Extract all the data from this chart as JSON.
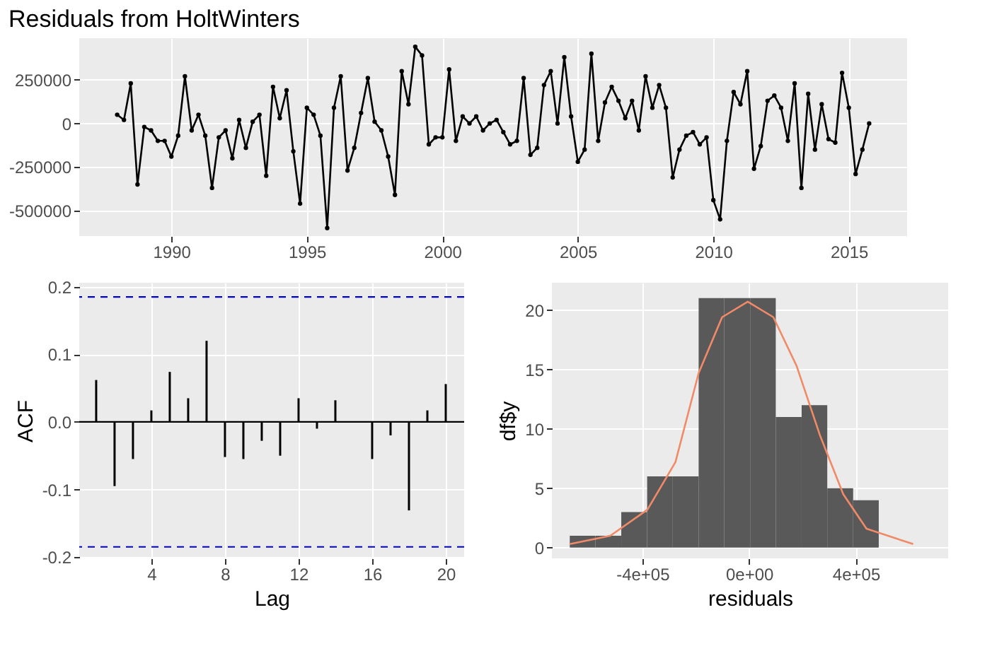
{
  "chart_data": [
    {
      "type": "line",
      "title": "Residuals from HoltWinters",
      "color": "#000000",
      "marker": "circle",
      "line_style": "solid",
      "grid": true,
      "x": [
        1988.0,
        1988.25,
        1988.5,
        1988.75,
        1989.0,
        1989.25,
        1989.5,
        1989.75,
        1990.0,
        1990.25,
        1990.5,
        1990.75,
        1991.0,
        1991.25,
        1991.5,
        1991.75,
        1992.0,
        1992.25,
        1992.5,
        1992.75,
        1993.0,
        1993.25,
        1993.5,
        1993.75,
        1994.0,
        1994.25,
        1994.5,
        1994.75,
        1995.0,
        1995.25,
        1995.5,
        1995.75,
        1996.0,
        1996.25,
        1996.5,
        1996.75,
        1997.0,
        1997.25,
        1997.5,
        1997.75,
        1998.0,
        1998.25,
        1998.5,
        1998.75,
        1999.0,
        1999.25,
        1999.5,
        1999.75,
        2000.0,
        2000.25,
        2000.5,
        2000.75,
        2001.0,
        2001.25,
        2001.5,
        2001.75,
        2002.0,
        2002.25,
        2002.5,
        2002.75,
        2003.0,
        2003.25,
        2003.5,
        2003.75,
        2004.0,
        2004.25,
        2004.5,
        2004.75,
        2005.0,
        2005.25,
        2005.5,
        2005.75,
        2006.0,
        2006.25,
        2006.5,
        2006.75,
        2007.0,
        2007.25,
        2007.5,
        2007.75,
        2008.0,
        2008.25,
        2008.5,
        2008.75,
        2009.0,
        2009.25,
        2009.5,
        2009.75,
        2010.0,
        2010.25,
        2010.5,
        2010.75,
        2011.0,
        2011.25,
        2011.5,
        2011.75,
        2012.0,
        2012.25,
        2012.5,
        2012.75,
        2013.0,
        2013.25,
        2013.5,
        2013.75,
        2014.0,
        2014.25,
        2014.5,
        2014.75,
        2015.0,
        2015.25,
        2015.5,
        2015.75
      ],
      "values": [
        50000,
        20000,
        230000,
        -350000,
        -20000,
        -40000,
        -100000,
        -100000,
        -190000,
        -70000,
        270000,
        -40000,
        50000,
        -70000,
        -370000,
        -80000,
        -40000,
        -200000,
        20000,
        -140000,
        10000,
        50000,
        -300000,
        210000,
        30000,
        190000,
        -160000,
        -460000,
        90000,
        50000,
        -70000,
        -600000,
        90000,
        270000,
        -270000,
        -140000,
        60000,
        260000,
        10000,
        -40000,
        -190000,
        -410000,
        300000,
        110000,
        440000,
        390000,
        -120000,
        -80000,
        -80000,
        310000,
        -100000,
        40000,
        0,
        40000,
        -40000,
        0,
        20000,
        -50000,
        -120000,
        -100000,
        260000,
        -180000,
        -140000,
        220000,
        300000,
        0,
        380000,
        40000,
        -220000,
        -150000,
        400000,
        -100000,
        120000,
        210000,
        130000,
        30000,
        130000,
        -40000,
        270000,
        90000,
        220000,
        90000,
        -310000,
        -150000,
        -70000,
        -50000,
        -120000,
        -80000,
        -440000,
        -550000,
        -100000,
        180000,
        110000,
        300000,
        -260000,
        -130000,
        130000,
        160000,
        90000,
        -100000,
        230000,
        -370000,
        170000,
        -150000,
        110000,
        -90000,
        -110000,
        290000,
        90000,
        -290000,
        -150000,
        0
      ],
      "xlim": [
        1986.6,
        2017.15
      ],
      "ylim": [
        -646000,
        489000
      ],
      "xticks": [
        1990,
        1995,
        2000,
        2005,
        2010,
        2015
      ],
      "yticks": [
        -500000,
        -250000,
        0,
        250000
      ]
    },
    {
      "type": "bar",
      "xlabel": "Lag",
      "ylabel": "ACF",
      "color": "#000000",
      "grid": true,
      "x": [
        1,
        2,
        3,
        4,
        5,
        6,
        7,
        8,
        9,
        10,
        11,
        12,
        13,
        14,
        15,
        16,
        17,
        18,
        19,
        20
      ],
      "values": [
        0.062,
        -0.095,
        -0.055,
        0.017,
        0.074,
        0.035,
        0.12,
        -0.052,
        -0.055,
        -0.028,
        -0.05,
        0.035,
        -0.01,
        0.032,
        0.0,
        -0.055,
        -0.02,
        -0.131,
        0.017,
        0.056
      ],
      "xlim": [
        0.08,
        21.0
      ],
      "ylim": [
        -0.202,
        0.206
      ],
      "xticks": [
        4,
        8,
        12,
        16,
        20
      ],
      "yticks": [
        -0.2,
        -0.1,
        {
          "value": 0,
          "label": "0.0"
        },
        0.1,
        0.2
      ],
      "ref_lines": [
        {
          "axis": "y",
          "value": 0.185,
          "color": "#0000cc",
          "line_style": "dashed"
        },
        {
          "axis": "y",
          "value": -0.185,
          "color": "#0000cc",
          "line_style": "dashed"
        },
        {
          "axis": "y",
          "value": 0,
          "color": "#000000",
          "line_style": "solid"
        }
      ]
    },
    {
      "type": "histogram",
      "xlabel": "residuals",
      "ylabel": "df$y",
      "color": "#595959",
      "grid": true,
      "bins": [
        -672000,
        -576000,
        -479000,
        -382000,
        -286000,
        -189000,
        -93000,
        4000,
        100000,
        197000,
        293000,
        390000,
        486000
      ],
      "values": [
        1,
        1,
        3,
        6,
        6,
        21,
        21,
        21,
        11,
        12,
        5,
        4
      ],
      "series": [
        {
          "type": "line",
          "color": "#f08a68",
          "x": [
            -672000,
            -520000,
            -381000,
            -276000,
            -189000,
            -101000,
            -5000,
            91000,
            178000,
            265000,
            353000,
            440000,
            615000
          ],
          "values": [
            0.3,
            1.0,
            3.2,
            7.2,
            14.7,
            19.4,
            20.7,
            19.4,
            15.3,
            9.5,
            4.5,
            1.6,
            0.3
          ]
        }
      ],
      "xlim": [
        -739000,
        746000
      ],
      "ylim": [
        -0.9,
        22.3
      ],
      "xticks": [
        {
          "value": -400000,
          "label": "-4e+05"
        },
        {
          "value": 0,
          "label": "0e+00"
        },
        {
          "value": 400000,
          "label": "4e+05"
        }
      ],
      "yticks": [
        0,
        5,
        10,
        15,
        20
      ]
    }
  ]
}
